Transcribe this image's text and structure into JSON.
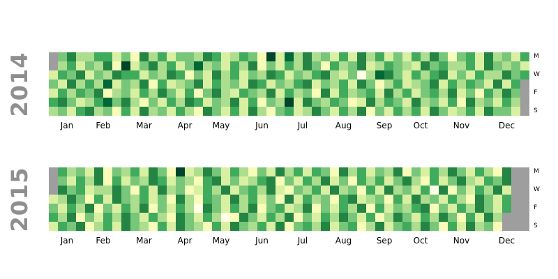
{
  "chart_data": {
    "type": "heatmap",
    "subtype": "calendar-heatmap",
    "title": "",
    "legend": "none",
    "grid": "off",
    "background": "#ffffff",
    "year_label_color": "#8f8f8f",
    "out_of_range_color": "#9e9e9e",
    "palette": [
      "#ffffe5",
      "#f7fcb9",
      "#d9f0a3",
      "#addd8e",
      "#78c679",
      "#41ab5d",
      "#238443",
      "#006837",
      "#004529"
    ],
    "weeks_per_year": 53,
    "days_per_week": 7,
    "day_tick_labels": [
      "M",
      "W",
      "F",
      "S"
    ],
    "day_tick_rows": [
      0,
      2,
      4,
      6
    ],
    "month_labels": [
      "Jan",
      "Feb",
      "Mar",
      "Apr",
      "May",
      "Jun",
      "Jul",
      "Aug",
      "Sep",
      "Oct",
      "Nov",
      "Dec"
    ],
    "month_week_boundaries": [
      0,
      4,
      8,
      13,
      17,
      21,
      26,
      30,
      35,
      39,
      43,
      48,
      53
    ],
    "years": [
      {
        "label": "2014",
        "lead_gray": 2,
        "trail_gray": 4,
        "rows": [
          "44633552416352443652354182736342526352425364145263425",
          "23524361824635247342536142536415346235432645335264342",
          "25462436552436514263524365243563240376425356242533645",
          "42635372436152346253426524356243526413523462535426253",
          "25354613425364251463254362534162534526352453624153642",
          "56423574631425365243625143826435412635426342516342535",
          "34256341526342531642526314523642536142535264235264423"
        ]
      },
      {
        "label": "2015",
        "lead_gray": 3,
        "trail_gray": 16,
        "rows": [
          "55342614352641823642531426352541635243614253642531642",
          "34253615243652431562423561425362415352463152463254635",
          "26452336415263412536245362143526341526342506142536241",
          "23641526435241631542635241625341562341526342531642535",
          "42536142536142530642536145236142536152435614253642534",
          "53614253642531642530164253614253642513642536415263425",
          "25461352643152643152643526145362451362453641526341523"
        ]
      }
    ]
  }
}
